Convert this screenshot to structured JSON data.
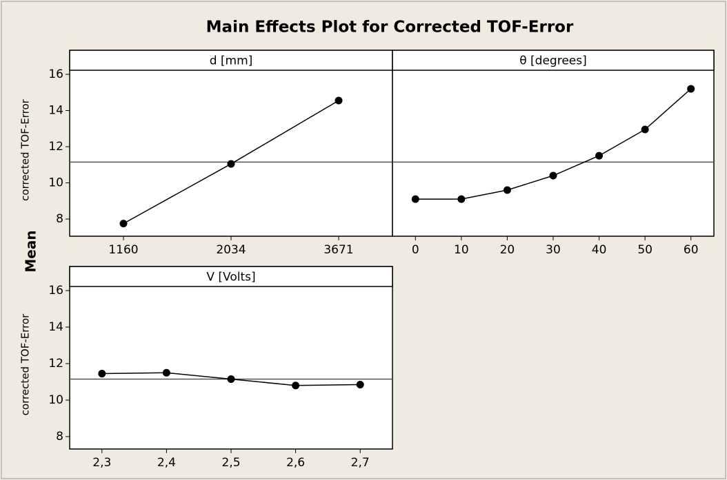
{
  "title": "Main Effects Plot for Corrected TOF-Error",
  "ylabel": "Mean",
  "chart_data": [
    {
      "type": "line",
      "title": "d [mm]",
      "ylabel": "corrected TOF-Error",
      "categories": [
        "1160",
        "2034",
        "3671"
      ],
      "values": [
        7.75,
        11.05,
        14.55
      ],
      "reference_line": 11.15,
      "color": "#000000",
      "ylim": [
        7.05,
        17.33
      ],
      "yticks": [
        8,
        10,
        12,
        14,
        16
      ]
    },
    {
      "type": "line",
      "title": "θ [degrees]",
      "categories": [
        "0",
        "10",
        "20",
        "30",
        "40",
        "50",
        "60"
      ],
      "values": [
        9.1,
        9.1,
        9.6,
        10.4,
        11.5,
        12.95,
        15.2
      ],
      "reference_line": 11.15,
      "color": "#000000",
      "ylim": [
        7.05,
        17.33
      ],
      "yticks": [
        8,
        10,
        12,
        14,
        16
      ]
    },
    {
      "type": "line",
      "title": "V [Volts]",
      "ylabel": "corrected TOF-Error",
      "categories": [
        "2,3",
        "2,4",
        "2,5",
        "2,6",
        "2,7"
      ],
      "values": [
        11.45,
        11.5,
        11.15,
        10.8,
        10.85
      ],
      "reference_line": 11.15,
      "color": "#000000",
      "ylim": [
        7.32,
        17.32
      ],
      "yticks": [
        8,
        10,
        12,
        14,
        16
      ]
    }
  ]
}
